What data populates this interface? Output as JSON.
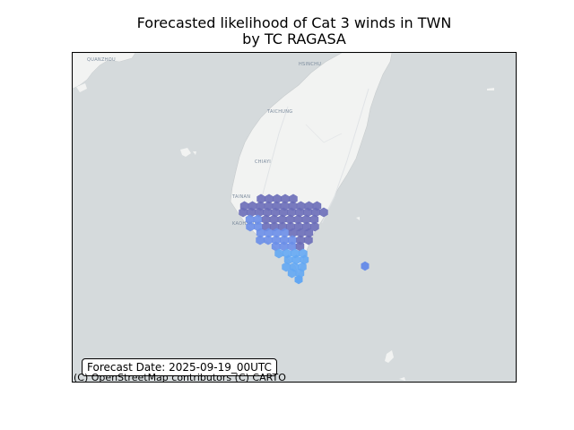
{
  "title": {
    "line1": "Forecasted likelihood of Cat 3 winds in TWN",
    "line2": "by TC RAGASA"
  },
  "forecast_date_label": "Forecast Date: 2025-09-19_00UTC",
  "attribution": "(C) OpenStreetMap contributors (C) CARTO",
  "map_labels": {
    "quanzhou": "QUANZHOU",
    "hsinchu": "HSINCHU",
    "taichung": "TAICHUNG",
    "chiayi": "CHIAYI",
    "tainan": "TAINAN",
    "kaohsiung": "KAOHSIUNG"
  },
  "colors": {
    "sea": "#d5dadc",
    "land": "#f2f3f2",
    "hex_dark": "#6a6db8",
    "hex_mid": "#6a8ee8",
    "hex_light": "#63a7f3"
  },
  "icons": {
    "frame": "map-frame"
  }
}
